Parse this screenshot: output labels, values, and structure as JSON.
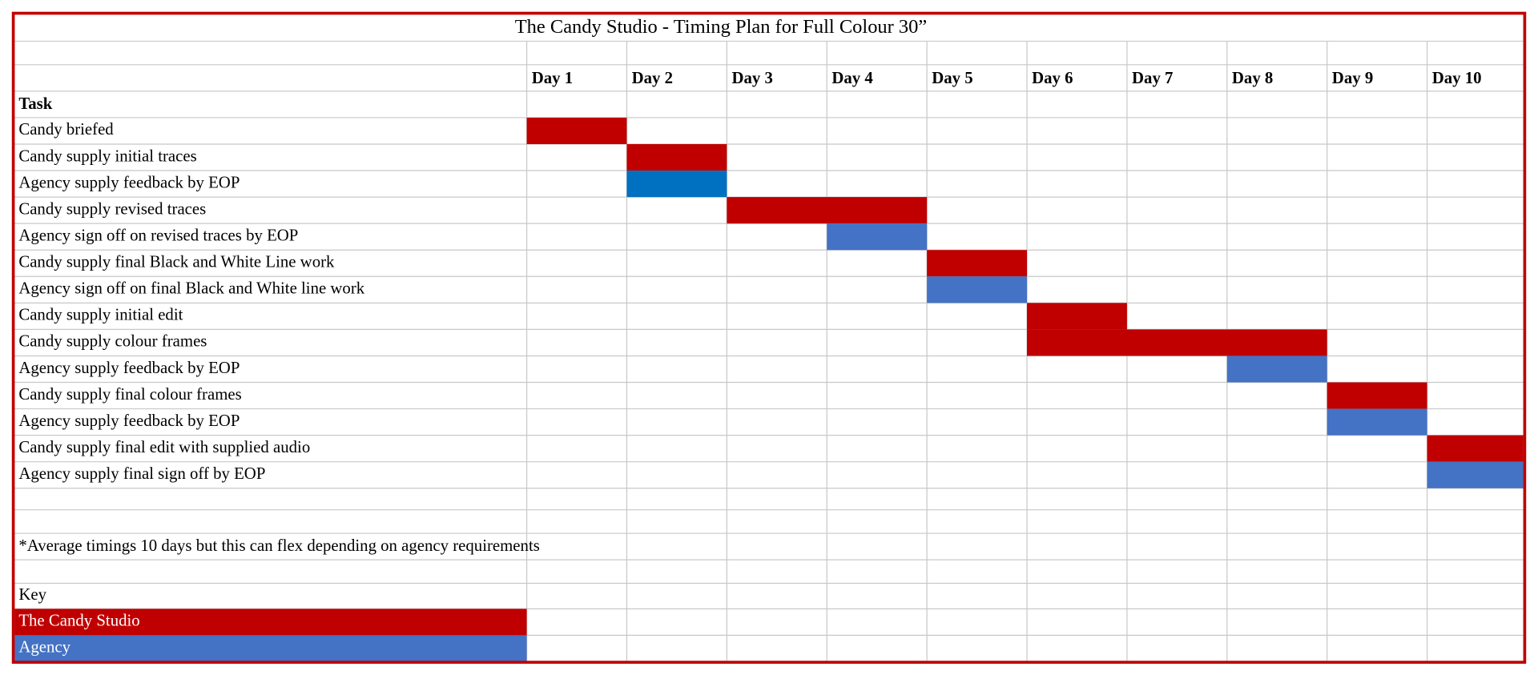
{
  "chart_data": {
    "type": "gantt",
    "title": "The Candy Studio - Timing Plan for Full Colour 30”",
    "categories": [
      "Day 1",
      "Day  2",
      "Day 3",
      "Day 4",
      "Day 5",
      "Day 6",
      "Day 7",
      "Day 8",
      "Day 9",
      "Day 10"
    ],
    "task_header": "Task",
    "series": [
      {
        "name": "The Candy Studio",
        "color": "#c00000"
      },
      {
        "name": "Agency",
        "color": "#4472c4"
      }
    ],
    "tasks": [
      {
        "name": "Candy briefed",
        "series": 0,
        "start": 1,
        "end": 1
      },
      {
        "name": "Candy supply initial traces",
        "series": 0,
        "start": 2,
        "end": 2
      },
      {
        "name": "Agency supply feedback by EOP",
        "series": 1,
        "start": 2,
        "end": 2,
        "color": "#0070c0"
      },
      {
        "name": "Candy supply revised traces",
        "series": 0,
        "start": 3,
        "end": 4
      },
      {
        "name": "Agency sign off on revised traces by EOP",
        "series": 1,
        "start": 4,
        "end": 4
      },
      {
        "name": "Candy supply final Black and White Line work",
        "series": 0,
        "start": 5,
        "end": 5
      },
      {
        "name": "Agency sign off on final Black and White line work",
        "series": 1,
        "start": 5,
        "end": 5
      },
      {
        "name": "Candy supply initial edit",
        "series": 0,
        "start": 6,
        "end": 6
      },
      {
        "name": "Candy supply colour frames",
        "series": 0,
        "start": 6,
        "end": 8
      },
      {
        "name": "Agency supply feedback by EOP",
        "series": 1,
        "start": 8,
        "end": 8
      },
      {
        "name": "Candy supply final colour frames",
        "series": 0,
        "start": 9,
        "end": 9
      },
      {
        "name": "Agency supply feedback by EOP",
        "series": 1,
        "start": 9,
        "end": 9
      },
      {
        "name": "Candy supply final edit with supplied audio",
        "series": 0,
        "start": 10,
        "end": 10
      },
      {
        "name": "Agency supply final sign off by EOP",
        "series": 1,
        "start": 10,
        "end": 10
      }
    ],
    "footnote": "*Average timings 10 days but this can flex depending on agency requirements",
    "key_label": "Key"
  }
}
